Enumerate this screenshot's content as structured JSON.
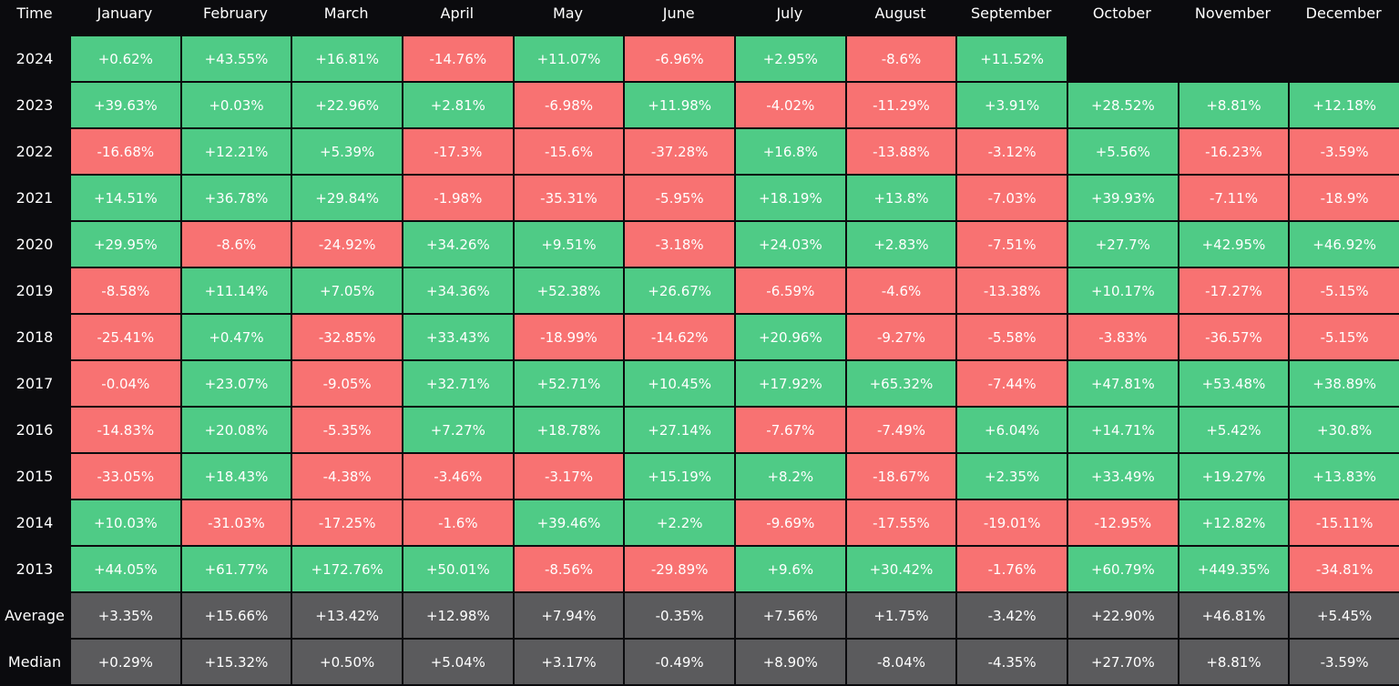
{
  "header": [
    "Time",
    "January",
    "February",
    "March",
    "April",
    "May",
    "June",
    "July",
    "August",
    "September",
    "October",
    "November",
    "December"
  ],
  "colors": {
    "up": "#4fcb86",
    "down": "#f87272",
    "summary": "#5b5b5d"
  },
  "rows": [
    {
      "label": "2024",
      "cells": [
        "+0.62%",
        "+43.55%",
        "+16.81%",
        "-14.76%",
        "+11.07%",
        "-6.96%",
        "+2.95%",
        "-8.6%",
        "+11.52%"
      ]
    },
    {
      "label": "2023",
      "cells": [
        "+39.63%",
        "+0.03%",
        "+22.96%",
        "+2.81%",
        "-6.98%",
        "+11.98%",
        "-4.02%",
        "-11.29%",
        "+3.91%",
        "+28.52%",
        "+8.81%",
        "+12.18%"
      ]
    },
    {
      "label": "2022",
      "cells": [
        "-16.68%",
        "+12.21%",
        "+5.39%",
        "-17.3%",
        "-15.6%",
        "-37.28%",
        "+16.8%",
        "-13.88%",
        "-3.12%",
        "+5.56%",
        "-16.23%",
        "-3.59%"
      ]
    },
    {
      "label": "2021",
      "cells": [
        "+14.51%",
        "+36.78%",
        "+29.84%",
        "-1.98%",
        "-35.31%",
        "-5.95%",
        "+18.19%",
        "+13.8%",
        "-7.03%",
        "+39.93%",
        "-7.11%",
        "-18.9%"
      ]
    },
    {
      "label": "2020",
      "cells": [
        "+29.95%",
        "-8.6%",
        "-24.92%",
        "+34.26%",
        "+9.51%",
        "-3.18%",
        "+24.03%",
        "+2.83%",
        "-7.51%",
        "+27.7%",
        "+42.95%",
        "+46.92%"
      ]
    },
    {
      "label": "2019",
      "cells": [
        "-8.58%",
        "+11.14%",
        "+7.05%",
        "+34.36%",
        "+52.38%",
        "+26.67%",
        "-6.59%",
        "-4.6%",
        "-13.38%",
        "+10.17%",
        "-17.27%",
        "-5.15%"
      ]
    },
    {
      "label": "2018",
      "cells": [
        "-25.41%",
        "+0.47%",
        "-32.85%",
        "+33.43%",
        "-18.99%",
        "-14.62%",
        "+20.96%",
        "-9.27%",
        "-5.58%",
        "-3.83%",
        "-36.57%",
        "-5.15%"
      ]
    },
    {
      "label": "2017",
      "cells": [
        "-0.04%",
        "+23.07%",
        "-9.05%",
        "+32.71%",
        "+52.71%",
        "+10.45%",
        "+17.92%",
        "+65.32%",
        "-7.44%",
        "+47.81%",
        "+53.48%",
        "+38.89%"
      ]
    },
    {
      "label": "2016",
      "cells": [
        "-14.83%",
        "+20.08%",
        "-5.35%",
        "+7.27%",
        "+18.78%",
        "+27.14%",
        "-7.67%",
        "-7.49%",
        "+6.04%",
        "+14.71%",
        "+5.42%",
        "+30.8%"
      ]
    },
    {
      "label": "2015",
      "cells": [
        "-33.05%",
        "+18.43%",
        "-4.38%",
        "-3.46%",
        "-3.17%",
        "+15.19%",
        "+8.2%",
        "-18.67%",
        "+2.35%",
        "+33.49%",
        "+19.27%",
        "+13.83%"
      ]
    },
    {
      "label": "2014",
      "cells": [
        "+10.03%",
        "-31.03%",
        "-17.25%",
        "-1.6%",
        "+39.46%",
        "+2.2%",
        "-9.69%",
        "-17.55%",
        "-19.01%",
        "-12.95%",
        "+12.82%",
        "-15.11%"
      ]
    },
    {
      "label": "2013",
      "cells": [
        "+44.05%",
        "+61.77%",
        "+172.76%",
        "+50.01%",
        "-8.56%",
        "-29.89%",
        "+9.6%",
        "+30.42%",
        "-1.76%",
        "+60.79%",
        "+449.35%",
        "-34.81%"
      ]
    }
  ],
  "summary_rows": [
    {
      "label": "Average",
      "cells": [
        "+3.35%",
        "+15.66%",
        "+13.42%",
        "+12.98%",
        "+7.94%",
        "-0.35%",
        "+7.56%",
        "+1.75%",
        "-3.42%",
        "+22.90%",
        "+46.81%",
        "+5.45%"
      ]
    },
    {
      "label": "Median",
      "cells": [
        "+0.29%",
        "+15.32%",
        "+0.50%",
        "+5.04%",
        "+3.17%",
        "-0.49%",
        "+8.90%",
        "-8.04%",
        "-4.35%",
        "+27.70%",
        "+8.81%",
        "-3.59%"
      ]
    }
  ]
}
